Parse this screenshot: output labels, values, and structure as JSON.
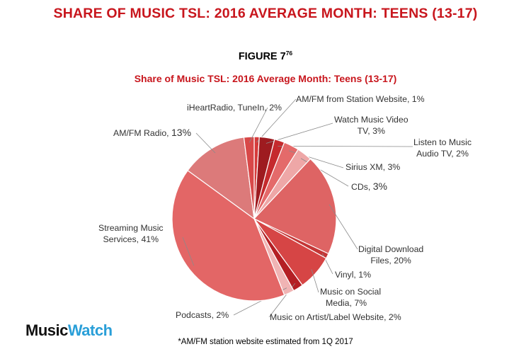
{
  "header": {
    "title": "SHARE OF MUSIC TSL: 2016 AVERAGE MONTH: TEENS (13-17)",
    "figure_label": "FIGURE 7",
    "figure_sup": "76"
  },
  "logo": {
    "part1": "Music",
    "part2": "Watch"
  },
  "footnote": "*AM/FM station website estimated from 1Q 2017",
  "colors": {
    "title_red": "#c8161d",
    "logo_blue": "#2a9fd8"
  },
  "chart_data": {
    "type": "pie",
    "title": "Share of Music TSL: 2016 Average Month: Teens (13-17)",
    "slices": [
      {
        "label_line1": "AM/FM from Station Website,",
        "label_line2": "",
        "value_label": "1%",
        "value": 1,
        "color": "#d63a3a"
      },
      {
        "label_line1": "Watch Music Video",
        "label_line2": "TV,",
        "value_label": "3%",
        "value": 3,
        "color": "#9e1b20"
      },
      {
        "label_line1": "Listen to Music",
        "label_line2": "Audio TV,",
        "value_label": "2%",
        "value": 2,
        "color": "#c52a2d"
      },
      {
        "label_line1": "Sirius XM,",
        "label_line2": "",
        "value_label": "3%",
        "value": 3,
        "color": "#e46a6a"
      },
      {
        "label_line1": "CDs,",
        "label_line2": "",
        "value_label": "3%",
        "value": 3,
        "color": "#eea7a7"
      },
      {
        "label_line1": "Digital Download",
        "label_line2": "Files,",
        "value_label": "20%",
        "value": 20,
        "color": "#de6464"
      },
      {
        "label_line1": "Vinyl,",
        "label_line2": "",
        "value_label": "1%",
        "value": 1,
        "color": "#c43636"
      },
      {
        "label_line1": "Music on Social",
        "label_line2": "Media,",
        "value_label": "7%",
        "value": 7,
        "color": "#d64545"
      },
      {
        "label_line1": "Music on Artist/Label Website,",
        "label_line2": "",
        "value_label": "2%",
        "value": 2,
        "color": "#b41f24"
      },
      {
        "label_line1": "Podcasts,",
        "label_line2": "",
        "value_label": "2%",
        "value": 2,
        "color": "#f0b4b4"
      },
      {
        "label_line1": "Streaming Music",
        "label_line2": "Services,",
        "value_label": "41%",
        "value": 41,
        "color": "#e36666"
      },
      {
        "label_line1": "AM/FM Radio,",
        "label_line2": "",
        "value_label": "13%",
        "value": 13,
        "color": "#dc7a7a"
      },
      {
        "label_line1": "iHeartRadio, TuneIn,",
        "label_line2": "",
        "value_label": "2%",
        "value": 2,
        "color": "#d84848"
      }
    ]
  }
}
